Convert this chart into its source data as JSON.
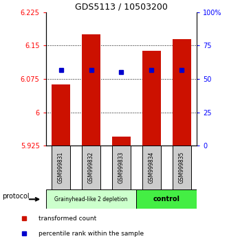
{
  "title": "GDS5113 / 10503200",
  "samples": [
    "GSM999831",
    "GSM999832",
    "GSM999833",
    "GSM999834",
    "GSM999835"
  ],
  "red_bar_bottom": [
    5.925,
    5.925,
    5.925,
    5.925,
    5.925
  ],
  "red_bar_top": [
    6.063,
    6.175,
    5.945,
    6.138,
    6.165
  ],
  "blue_dot_y": [
    6.095,
    6.095,
    6.09,
    6.095,
    6.095
  ],
  "ylim_left": [
    5.925,
    6.225
  ],
  "ylim_right": [
    0,
    100
  ],
  "yticks_left": [
    5.925,
    6.0,
    6.075,
    6.15,
    6.225
  ],
  "yticks_right": [
    0,
    25,
    50,
    75,
    100
  ],
  "ytick_labels_left": [
    "5.925",
    "6",
    "6.075",
    "6.15",
    "6.225"
  ],
  "ytick_labels_right": [
    "0",
    "25",
    "50",
    "75",
    "100%"
  ],
  "group1_label": "Grainyhead-like 2 depletion",
  "group2_label": "control",
  "protocol_label": "protocol",
  "group1_color": "#ccffcc",
  "group2_color": "#44ee44",
  "bar_color": "#cc1100",
  "dot_color": "#0000cc",
  "sample_box_color": "#cccccc",
  "legend_red": "transformed count",
  "legend_blue": "percentile rank within the sample",
  "bar_width": 0.6,
  "n_group1": 3,
  "n_group2": 2
}
